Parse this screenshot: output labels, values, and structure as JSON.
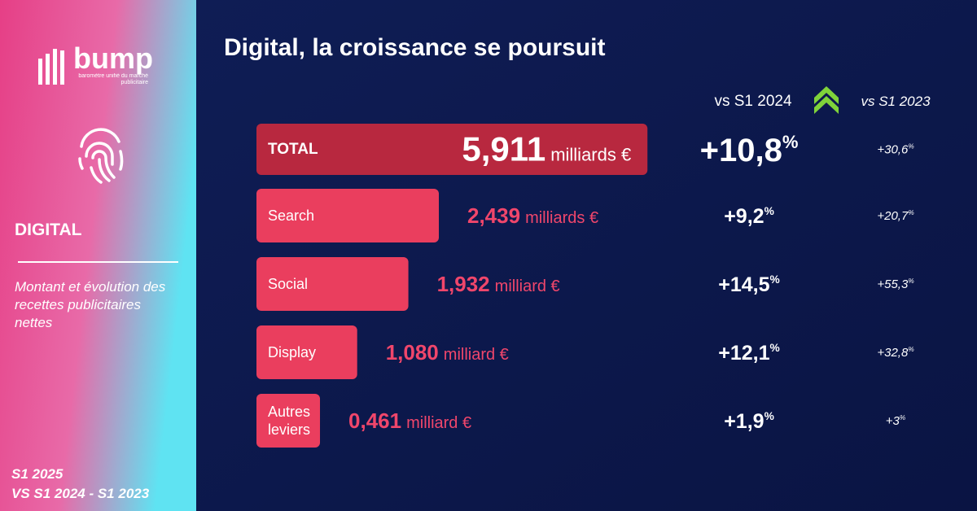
{
  "sidebar": {
    "logo": "bump",
    "logo_tagline": "baromètre unifié du marché publicitaire",
    "section": "DIGITAL",
    "description": "Montant et évolution des recettes publicitaires nettes",
    "period": "S1 2025",
    "comparison": "VS S1 2024 - S1 2023"
  },
  "chart_data": {
    "type": "bar",
    "title": "Digital, la croissance se poursuit",
    "categories": [
      "TOTAL",
      "Search",
      "Social",
      "Display",
      "Autres leviers"
    ],
    "values": [
      5.911,
      2.439,
      1.932,
      1.08,
      0.461
    ],
    "value_labels": [
      "5,911",
      "2,439",
      "1,932",
      "1,080",
      "0,461"
    ],
    "units": [
      "milliards €",
      "milliards €",
      "milliard €",
      "milliard €",
      "milliard €"
    ],
    "colors": [
      "#b8283f",
      "#ea3e5e",
      "#ea3e5e",
      "#ea3e5e",
      "#ea3e5e"
    ],
    "percent_sign": "%",
    "growth_columns": [
      {
        "header": "vs S1 2024",
        "values": [
          10.8,
          9.2,
          14.5,
          12.1,
          1.9
        ],
        "value_labels": [
          "+10,8",
          "+9,2",
          "+14,5",
          "+12,1",
          "+1,9"
        ]
      },
      {
        "header": "vs S1 2023",
        "values": [
          30.6,
          20.7,
          55.3,
          32.8,
          3
        ],
        "value_labels": [
          "+30,6",
          "+20,7",
          "+55,3",
          "+32,8",
          "+3"
        ]
      }
    ]
  }
}
